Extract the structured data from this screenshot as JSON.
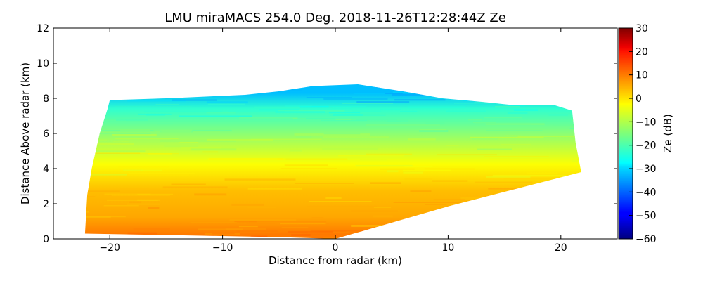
{
  "chart_data": {
    "type": "heatmap",
    "title": "LMU miraMACS 254.0 Deg. 2018-11-26T12:28:44Z  Ze",
    "xlabel": "Distance from radar (km)",
    "ylabel": "Distance Above radar  (km)",
    "xlim": [
      -25,
      25
    ],
    "ylim": [
      0,
      12
    ],
    "xticks": [
      "−20",
      "−10",
      "0",
      "10",
      "20"
    ],
    "yticks": [
      "0",
      "2",
      "4",
      "6",
      "8",
      "10",
      "12"
    ],
    "colorbar": {
      "label": "Ze (dB)",
      "range": [
        -60,
        30
      ],
      "colormap": "jet",
      "ticks": [
        "−60",
        "−50",
        "−40",
        "−30",
        "−20",
        "−10",
        "0",
        "10",
        "20",
        "30"
      ]
    },
    "echo_region": {
      "outline_km": [
        [
          -22.2,
          0.3
        ],
        [
          -22.0,
          2.5
        ],
        [
          -21.6,
          4.0
        ],
        [
          -20.9,
          6.0
        ],
        [
          -20.2,
          7.4
        ],
        [
          -20.0,
          7.9
        ],
        [
          -15.0,
          8.0
        ],
        [
          -11.5,
          8.1
        ],
        [
          -8.0,
          8.2
        ],
        [
          -5.0,
          8.4
        ],
        [
          -2.0,
          8.7
        ],
        [
          2.0,
          8.8
        ],
        [
          6.0,
          8.4
        ],
        [
          9.5,
          8.0
        ],
        [
          13.0,
          7.8
        ],
        [
          16.0,
          7.6
        ],
        [
          19.5,
          7.6
        ],
        [
          21.0,
          7.3
        ],
        [
          21.3,
          5.5
        ],
        [
          21.8,
          3.8
        ],
        [
          10.0,
          1.85
        ],
        [
          0.0,
          0.0
        ],
        [
          -5.0,
          0.1
        ],
        [
          -22.2,
          0.3
        ]
      ],
      "reflectivity_layers_dbz": [
        {
          "height_km": [
            0.0,
            0.5
          ],
          "ze_dbz": 8
        },
        {
          "height_km": [
            0.5,
            2.0
          ],
          "ze_dbz": 4
        },
        {
          "height_km": [
            2.0,
            3.5
          ],
          "ze_dbz": 2
        },
        {
          "height_km": [
            3.5,
            5.0
          ],
          "ze_dbz": -4
        },
        {
          "height_km": [
            5.0,
            6.0
          ],
          "ze_dbz": -11
        },
        {
          "height_km": [
            6.0,
            7.0
          ],
          "ze_dbz": -17
        },
        {
          "height_km": [
            7.0,
            7.8
          ],
          "ze_dbz": -22
        },
        {
          "height_km": [
            7.8,
            8.8
          ],
          "ze_dbz": -32
        }
      ]
    }
  }
}
